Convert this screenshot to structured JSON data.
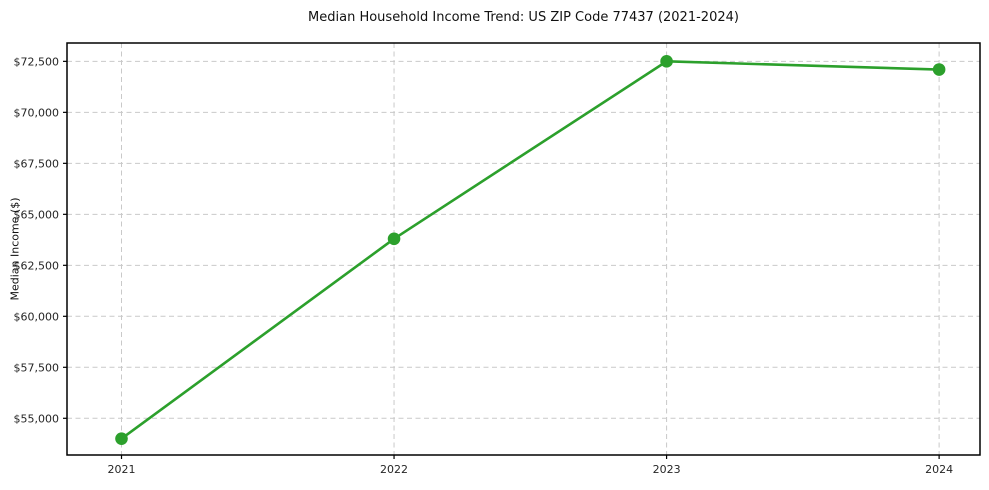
{
  "chart_data": {
    "type": "line",
    "title": "Median Household Income Trend: US ZIP Code 77437 (2021-2024)",
    "xlabel": "",
    "ylabel": "Median Income ($)",
    "x": [
      2021,
      2022,
      2023,
      2024
    ],
    "values": [
      54000,
      63800,
      72500,
      72100
    ],
    "xticks": {
      "values": [
        2021,
        2022,
        2023,
        2024
      ],
      "labels": [
        "2021",
        "2022",
        "2023",
        "2024"
      ]
    },
    "yticks": {
      "values": [
        55000,
        57500,
        60000,
        62500,
        65000,
        67500,
        70000,
        72500
      ],
      "labels": [
        "$55,000",
        "$57,500",
        "$60,000",
        "$62,500",
        "$65,000",
        "$67,500",
        "$70,000",
        "$72,500"
      ]
    },
    "xlim": [
      2020.8,
      2024.15
    ],
    "ylim": [
      53200,
      73400
    ],
    "grid": true,
    "grid_style": "dashed",
    "legend_position": "none",
    "line_color": "#2ca02c",
    "marker_color": "#2ca02c",
    "grid_color": "#c9c9c9",
    "spine_color": "#000000",
    "background_color": "#ffffff"
  }
}
